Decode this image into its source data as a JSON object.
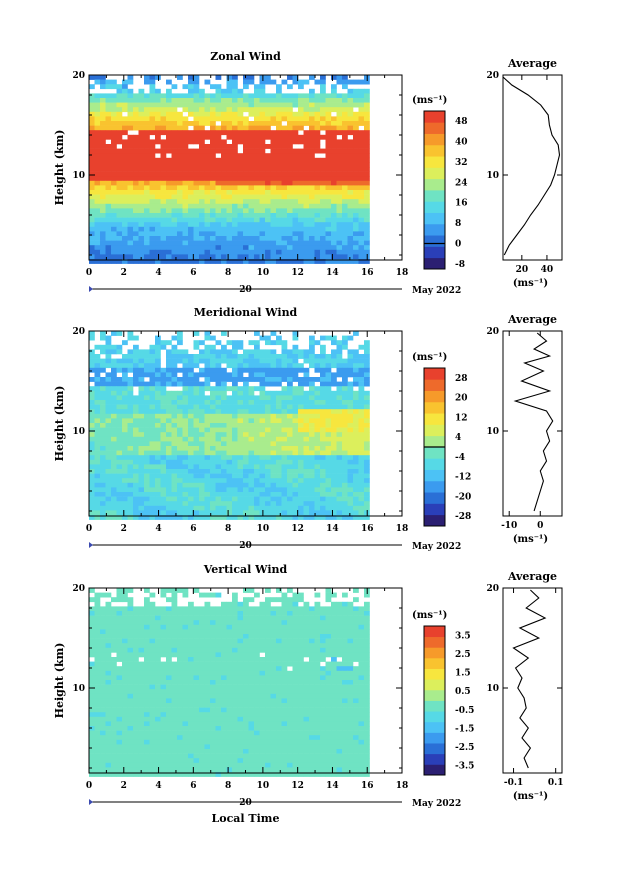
{
  "figure": {
    "x_label": "Local Time",
    "date_label": "May 2022",
    "day_label": "20",
    "y_label": "Height (km)",
    "avg_title": "Average",
    "unit_label": "(ms⁻¹)"
  },
  "colormap": [
    "#2b1f72",
    "#2a3fb8",
    "#2a6fd6",
    "#3b9bef",
    "#4cc2f5",
    "#56d9e6",
    "#6fe3c3",
    "#a9ec8d",
    "#dcef5c",
    "#f7e63e",
    "#f9c32f",
    "#f69a2a",
    "#ee6a2b",
    "#e8412d"
  ],
  "chart_data": [
    {
      "type": "heatmap",
      "title": "Zonal Wind",
      "x_ticks": [
        0,
        2,
        4,
        6,
        8,
        10,
        12,
        14,
        16,
        18
      ],
      "y_ticks": [
        10,
        20
      ],
      "xlim": [
        0,
        18
      ],
      "ylim": [
        1.5,
        20
      ],
      "data_xlim": [
        0,
        16
      ],
      "colorbar": {
        "ticks": [
          48,
          40,
          32,
          24,
          16,
          8,
          0,
          -8
        ],
        "range": [
          -10,
          52
        ],
        "zero_line": 0
      },
      "profile": {
        "title": "Average",
        "x_ticks": [
          20,
          40
        ],
        "xlim": [
          5,
          52
        ],
        "heights": [
          2,
          3,
          4,
          5,
          6,
          7,
          8,
          9,
          10,
          11,
          12,
          13,
          14,
          15,
          16,
          17,
          18,
          19,
          19.8
        ],
        "values": [
          6,
          10,
          16,
          22,
          27,
          33,
          38,
          43,
          46,
          48,
          50,
          49,
          44,
          42,
          41,
          35,
          25,
          12,
          5
        ]
      }
    },
    {
      "type": "heatmap",
      "title": "Meridional Wind",
      "x_ticks": [
        0,
        2,
        4,
        6,
        8,
        10,
        12,
        14,
        16,
        18
      ],
      "y_ticks": [
        10,
        20
      ],
      "xlim": [
        0,
        18
      ],
      "ylim": [
        1.5,
        20
      ],
      "data_xlim": [
        0,
        16
      ],
      "colorbar": {
        "ticks": [
          28,
          20,
          12,
          4,
          -4,
          -12,
          -20,
          -28
        ],
        "range": [
          -32,
          32
        ],
        "zero_line": 0
      },
      "profile": {
        "title": "Average",
        "x_ticks": [
          -10,
          0
        ],
        "xlim": [
          -12,
          7
        ],
        "heights": [
          2,
          3,
          4,
          5,
          6,
          7,
          8,
          9,
          10,
          11,
          12,
          13,
          14,
          15,
          16,
          16.8,
          17.5,
          18.2,
          19,
          19.8
        ],
        "values": [
          -2,
          -1,
          0,
          1,
          0,
          2,
          1,
          3,
          2,
          4,
          2,
          -8,
          3,
          -6,
          1,
          -5,
          3,
          -2,
          2,
          -1
        ]
      }
    },
    {
      "type": "heatmap",
      "title": "Vertical Wind",
      "x_ticks": [
        0,
        2,
        4,
        6,
        8,
        10,
        12,
        14,
        16,
        18
      ],
      "y_ticks": [
        10,
        20
      ],
      "xlim": [
        0,
        18
      ],
      "ylim": [
        1.5,
        20
      ],
      "data_xlim": [
        0,
        16
      ],
      "colorbar": {
        "ticks": [
          3.5,
          2.5,
          1.5,
          0.5,
          -0.5,
          -1.5,
          -2.5,
          -3.5
        ],
        "range": [
          -4,
          4
        ]
      },
      "profile": {
        "title": "Average",
        "x_ticks": [
          -0.1,
          0.1
        ],
        "xlim": [
          -0.15,
          0.13
        ],
        "heights": [
          2,
          3,
          4,
          5,
          6,
          7,
          8,
          9,
          10,
          11,
          12,
          13,
          14,
          15,
          16,
          17,
          18,
          19,
          19.8
        ],
        "values": [
          -0.03,
          -0.05,
          -0.02,
          -0.06,
          -0.03,
          -0.07,
          -0.04,
          -0.05,
          -0.08,
          -0.06,
          -0.09,
          -0.03,
          -0.1,
          0.02,
          -0.07,
          0.05,
          -0.04,
          0.02,
          -0.02
        ]
      }
    }
  ]
}
